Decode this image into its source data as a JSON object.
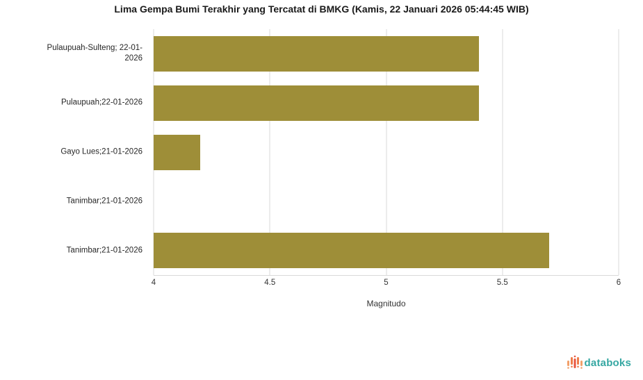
{
  "title": "Lima Gempa Bumi Terakhir yang Tercatat di BMKG (Kamis, 22 Januari 2026 05:44:45 WIB)",
  "chart_data": {
    "type": "bar",
    "orientation": "horizontal",
    "title": "Lima Gempa Bumi Terakhir yang Tercatat di BMKG (Kamis, 22 Januari 2026 05:44:45 WIB)",
    "categories": [
      "Pulaupuah-Sulteng; 22-01-2026",
      "Pulaupuah;22-01-2026",
      "Gayo Lues;21-01-2026",
      "Tanimbar;21-01-2026",
      "Tanimbar;21-01-2026"
    ],
    "values": [
      5.4,
      5.4,
      4.2,
      4.0,
      5.7
    ],
    "xlabel": "Magnitudo",
    "ylabel": "",
    "xlim": [
      4,
      6
    ],
    "xticks": [
      4,
      4.5,
      5,
      5.5,
      6
    ],
    "xtick_labels": [
      "4",
      "4.5",
      "5",
      "5.5",
      "6"
    ],
    "bar_color": "#9e8e38",
    "grid": true,
    "legend": false
  },
  "colors": {
    "grid": "#d9d9d9",
    "axis": "#d9d9d9",
    "tick_text": "#333333",
    "label_text": "#262626",
    "title_text": "#1a1a1a"
  },
  "footer": {
    "brand": "databoks",
    "brand_color": "#35a7a2",
    "logo_icon": "pulse-bars-icon",
    "logo_colors": [
      "#f2a06a",
      "#ee7c4a",
      "#e85540"
    ]
  }
}
